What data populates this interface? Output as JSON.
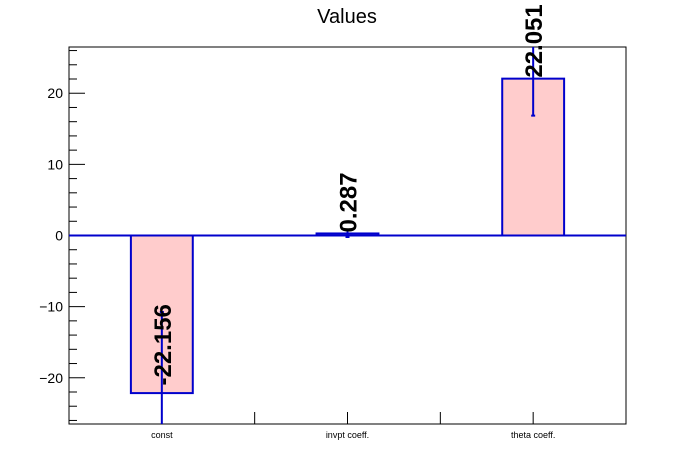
{
  "chart_data": {
    "type": "bar",
    "title": "Values",
    "xlabel": "",
    "ylabel": "",
    "categories": [
      "const",
      "invpt coeff.",
      "theta coeff."
    ],
    "values": [
      -22.156,
      0.287,
      22.051
    ],
    "errors": [
      11.4,
      0.5,
      5.2
    ],
    "value_labels": [
      "-22.156",
      "0.287",
      "22.051"
    ],
    "ylim": [
      -26.5,
      26.5
    ],
    "yticks": [
      -20,
      -10,
      0,
      10,
      20
    ],
    "ytick_labels": [
      "−20",
      "−10",
      "0",
      "10",
      "20"
    ],
    "grid": false,
    "colors": {
      "bar_fill": "#ffcccc",
      "bar_stroke": "#0000cc",
      "error": "#0000cc",
      "axis": "#000000"
    }
  }
}
